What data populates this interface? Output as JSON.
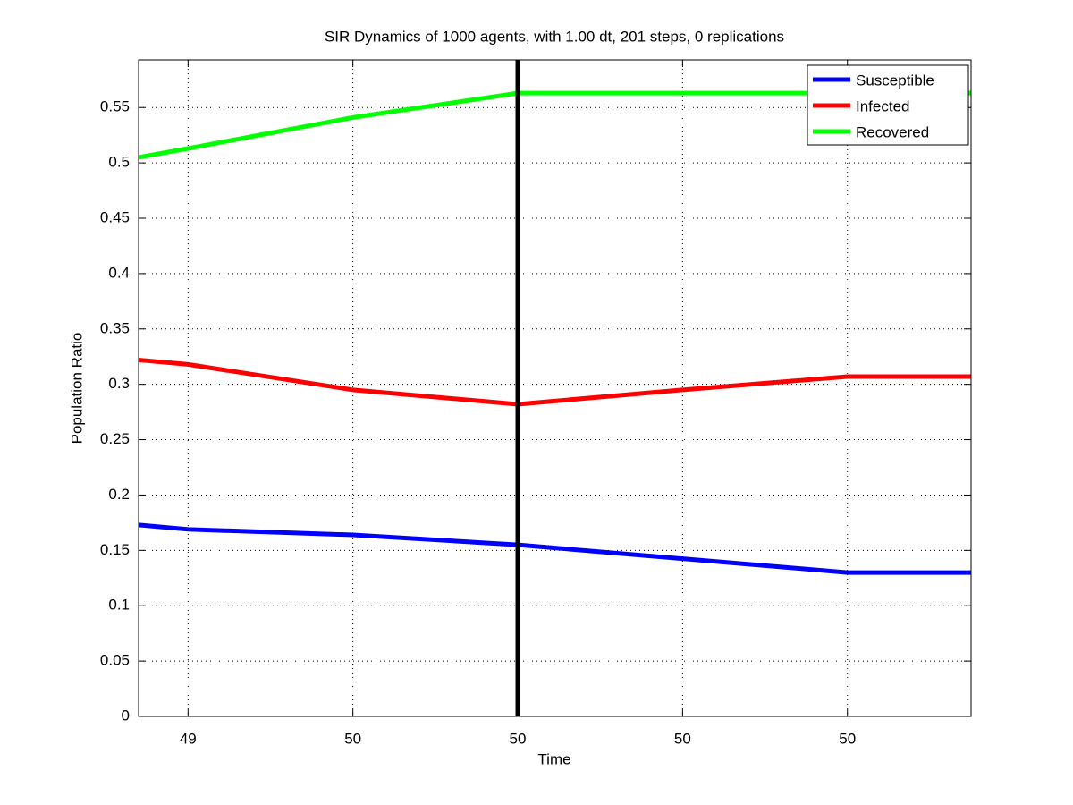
{
  "chart_data": {
    "type": "line",
    "title": "SIR Dynamics of 1000 agents, with 1.00 dt, 201 steps, 0 replications",
    "x_label": "Time",
    "y_label": "Population Ratio",
    "x": [
      49.34,
      49.4,
      49.6,
      49.8,
      50.0,
      50.2,
      50.35
    ],
    "series": [
      {
        "name": "Susceptible",
        "color": "#0000ff",
        "values": [
          0.173,
          0.169,
          0.164,
          0.155,
          0.1425,
          0.13,
          0.13
        ]
      },
      {
        "name": "Infected",
        "color": "#ff0000",
        "values": [
          0.322,
          0.318,
          0.295,
          0.282,
          0.295,
          0.307,
          0.307
        ]
      },
      {
        "name": "Recovered",
        "color": "#00ff00",
        "values": [
          0.505,
          0.513,
          0.541,
          0.563,
          0.563,
          0.563,
          0.563
        ]
      }
    ],
    "vline": {
      "x": 49.8,
      "color": "#000000"
    },
    "xlim": [
      49.34,
      50.35
    ],
    "ylim": [
      0,
      0.593
    ],
    "xticks": [
      {
        "value": 49.4,
        "label": "49"
      },
      {
        "value": 49.6,
        "label": "50"
      },
      {
        "value": 49.8,
        "label": "50"
      },
      {
        "value": 50.0,
        "label": "50"
      },
      {
        "value": 50.2,
        "label": "50"
      }
    ],
    "yticks": [
      0,
      0.05,
      0.1,
      0.15,
      0.2,
      0.25,
      0.3,
      0.35,
      0.4,
      0.45,
      0.5,
      0.55
    ],
    "grid": true,
    "legend": "upper-right"
  }
}
